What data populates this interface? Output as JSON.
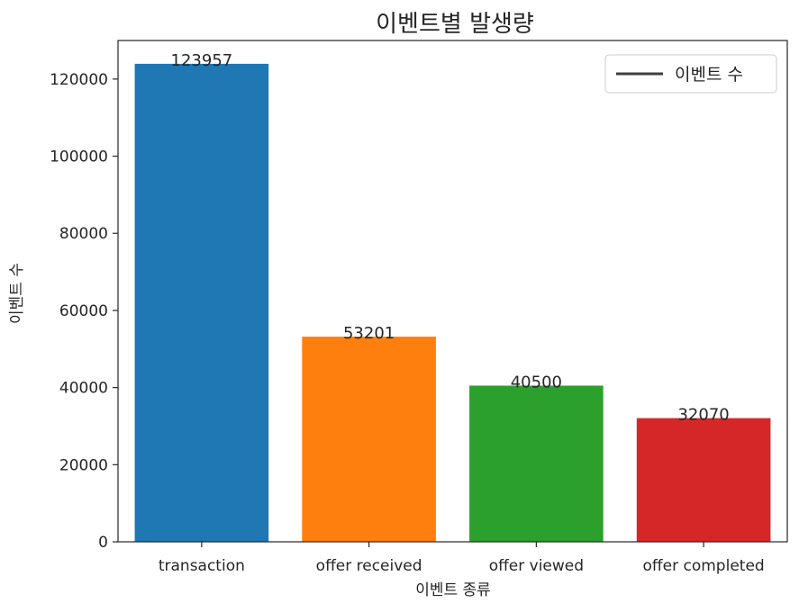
{
  "chart_data": {
    "type": "bar",
    "title": "이벤트별 발생량",
    "xlabel": "이벤트 종류",
    "ylabel": "이벤트 수",
    "categories": [
      "transaction",
      "offer received",
      "offer viewed",
      "offer completed"
    ],
    "values": [
      123957,
      53201,
      40500,
      32070
    ],
    "data_labels": [
      "123957",
      "53201",
      "40500",
      "32070"
    ],
    "colors": [
      "#1f77b4",
      "#ff7f0e",
      "#2ca02c",
      "#d62728"
    ],
    "ylim": [
      0,
      130000
    ],
    "yticks": [
      0,
      20000,
      40000,
      60000,
      80000,
      100000,
      120000
    ],
    "ytick_labels": [
      "0",
      "20000",
      "40000",
      "60000",
      "80000",
      "100000",
      "120000"
    ],
    "grid": false,
    "legend": {
      "position": "top-right",
      "entries": [
        {
          "label": "이벤트 수",
          "marker": "line",
          "color": "#3f3f3f"
        }
      ]
    }
  }
}
